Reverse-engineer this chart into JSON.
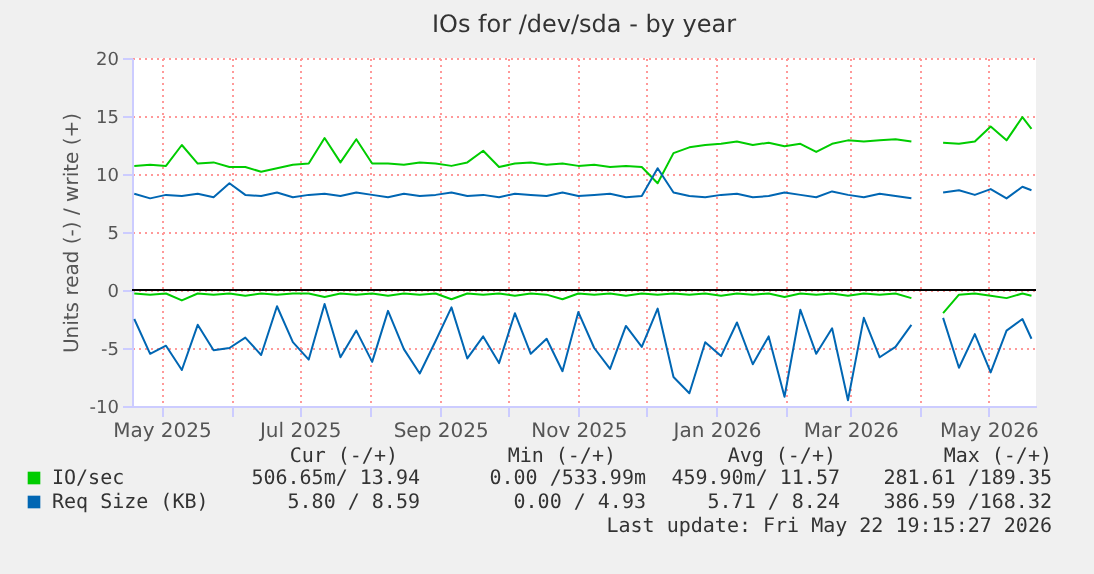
{
  "chart_data": {
    "type": "line",
    "title": "IOs for /dev/sda - by year",
    "ylabel": "Units read (-) / write (+)",
    "x": [
      "2025-04-19",
      "2025-04-26",
      "2025-05-03",
      "2025-05-10",
      "2025-05-17",
      "2025-05-24",
      "2025-05-31",
      "2025-06-07",
      "2025-06-14",
      "2025-06-21",
      "2025-06-28",
      "2025-07-05",
      "2025-07-12",
      "2025-07-19",
      "2025-07-26",
      "2025-08-02",
      "2025-08-09",
      "2025-08-16",
      "2025-08-23",
      "2025-08-30",
      "2025-09-06",
      "2025-09-13",
      "2025-09-20",
      "2025-09-27",
      "2025-10-04",
      "2025-10-11",
      "2025-10-18",
      "2025-10-25",
      "2025-11-01",
      "2025-11-08",
      "2025-11-15",
      "2025-11-22",
      "2025-11-29",
      "2025-12-06",
      "2025-12-13",
      "2025-12-20",
      "2025-12-27",
      "2026-01-03",
      "2026-01-10",
      "2026-01-17",
      "2026-01-24",
      "2026-01-31",
      "2026-02-07",
      "2026-02-14",
      "2026-02-21",
      "2026-02-28",
      "2026-03-07",
      "2026-03-14",
      "2026-03-21",
      "2026-03-28",
      "2026-04-04",
      "2026-04-11",
      "2026-04-18",
      "2026-04-25",
      "2026-05-02",
      "2026-05-09",
      "2026-05-16",
      "2026-05-20"
    ],
    "series": [
      {
        "name": "IO/sec",
        "color": "#00cc00",
        "values": [
          10.7,
          10.8,
          10.7,
          12.5,
          10.9,
          11.0,
          10.6,
          10.6,
          10.2,
          10.5,
          10.8,
          10.9,
          13.1,
          11.0,
          13.0,
          10.9,
          10.9,
          10.8,
          11.0,
          10.9,
          10.7,
          11.0,
          12.0,
          10.6,
          10.9,
          11.0,
          10.8,
          10.9,
          10.7,
          10.8,
          10.6,
          10.7,
          10.6,
          9.2,
          11.8,
          12.3,
          12.5,
          12.6,
          12.8,
          12.5,
          12.7,
          12.4,
          12.6,
          11.9,
          12.6,
          12.9,
          12.8,
          12.9,
          13.0,
          12.8,
          null,
          12.7,
          12.6,
          12.8,
          14.1,
          12.9,
          14.9,
          13.9
        ]
      },
      {
        "color": "#00cc00",
        "values": [
          -0.3,
          -0.4,
          -0.3,
          -0.9,
          -0.3,
          -0.4,
          -0.3,
          -0.5,
          -0.3,
          -0.4,
          -0.3,
          -0.3,
          -0.6,
          -0.3,
          -0.4,
          -0.3,
          -0.5,
          -0.3,
          -0.4,
          -0.3,
          -0.8,
          -0.3,
          -0.4,
          -0.3,
          -0.5,
          -0.3,
          -0.4,
          -0.8,
          -0.3,
          -0.4,
          -0.3,
          -0.5,
          -0.3,
          -0.4,
          -0.3,
          -0.4,
          -0.3,
          -0.5,
          -0.3,
          -0.4,
          -0.3,
          -0.6,
          -0.3,
          -0.4,
          -0.3,
          -0.5,
          -0.3,
          -0.4,
          -0.3,
          -0.7,
          null,
          -2.0,
          -0.4,
          -0.3,
          -0.5,
          -0.7,
          -0.3,
          -0.5
        ]
      },
      {
        "name": "Req Size (KB)",
        "color": "#0066b3",
        "values": [
          8.3,
          7.9,
          8.2,
          8.1,
          8.3,
          8.0,
          9.2,
          8.2,
          8.1,
          8.4,
          8.0,
          8.2,
          8.3,
          8.1,
          8.4,
          8.2,
          8.0,
          8.3,
          8.1,
          8.2,
          8.4,
          8.1,
          8.2,
          8.0,
          8.3,
          8.2,
          8.1,
          8.4,
          8.1,
          8.2,
          8.3,
          8.0,
          8.1,
          10.5,
          8.4,
          8.1,
          8.0,
          8.2,
          8.3,
          8.0,
          8.1,
          8.4,
          8.2,
          8.0,
          8.5,
          8.2,
          8.0,
          8.3,
          8.1,
          7.9,
          null,
          8.4,
          8.6,
          8.2,
          8.7,
          7.9,
          8.9,
          8.6
        ]
      },
      {
        "color": "#0066b3",
        "values": [
          -2.5,
          -5.5,
          -4.8,
          -6.9,
          -3.0,
          -5.2,
          -5.0,
          -4.1,
          -5.6,
          -1.4,
          -4.5,
          -6.0,
          -1.2,
          -5.8,
          -3.5,
          -6.2,
          -1.8,
          -5.1,
          -7.2,
          -4.4,
          -1.5,
          -5.9,
          -4.0,
          -6.3,
          -2.0,
          -5.5,
          -4.2,
          -7.0,
          -1.9,
          -5.0,
          -6.8,
          -3.1,
          -4.9,
          -1.6,
          -7.5,
          -8.9,
          -4.5,
          -5.7,
          -2.8,
          -6.4,
          -4.0,
          -9.2,
          -1.7,
          -5.5,
          -3.3,
          -9.5,
          -2.4,
          -5.8,
          -4.9,
          -3.0,
          null,
          -2.4,
          -6.7,
          -3.8,
          -7.1,
          -3.5,
          -2.5,
          -4.2
        ]
      }
    ],
    "xlim": [
      "2025-04-18",
      "2026-05-22"
    ],
    "xticks": [
      {
        "value": "2025-05-01",
        "label": "May 2025"
      },
      {
        "value": "2025-06-01",
        "label": null
      },
      {
        "value": "2025-07-01",
        "label": "Jul 2025"
      },
      {
        "value": "2025-08-01",
        "label": null
      },
      {
        "value": "2025-09-01",
        "label": "Sep 2025"
      },
      {
        "value": "2025-10-01",
        "label": null
      },
      {
        "value": "2025-11-01",
        "label": "Nov 2025"
      },
      {
        "value": "2025-12-01",
        "label": null
      },
      {
        "value": "2026-01-01",
        "label": "Jan 2026"
      },
      {
        "value": "2026-02-01",
        "label": null
      },
      {
        "value": "2026-03-01",
        "label": "Mar 2026"
      },
      {
        "value": "2026-04-01",
        "label": null
      },
      {
        "value": "2026-05-01",
        "label": "May 2026"
      }
    ],
    "ylim": [
      -10,
      20
    ],
    "yticks": [
      -10,
      -5,
      0,
      5,
      10,
      15,
      20
    ],
    "grid": true,
    "legend": "bottom",
    "line_style": "solid",
    "marker": "none",
    "ref_lines": [
      {
        "axis": "y",
        "value": 0,
        "color": "#000000"
      }
    ],
    "annotations": [
      "Cur (-/+)",
      "Min (-/+)",
      "Avg (-/+)",
      "Max (-/+)",
      "506.65m/ 13.94",
      "0.00 /533.99m",
      "459.90m/ 11.57",
      "281.61 /189.35",
      "5.80 /  8.59",
      "0.00 /  4.93",
      "5.71 /  8.24",
      "386.59 /168.32",
      "Last update: Fri May 22 19:15:27 2026"
    ]
  }
}
